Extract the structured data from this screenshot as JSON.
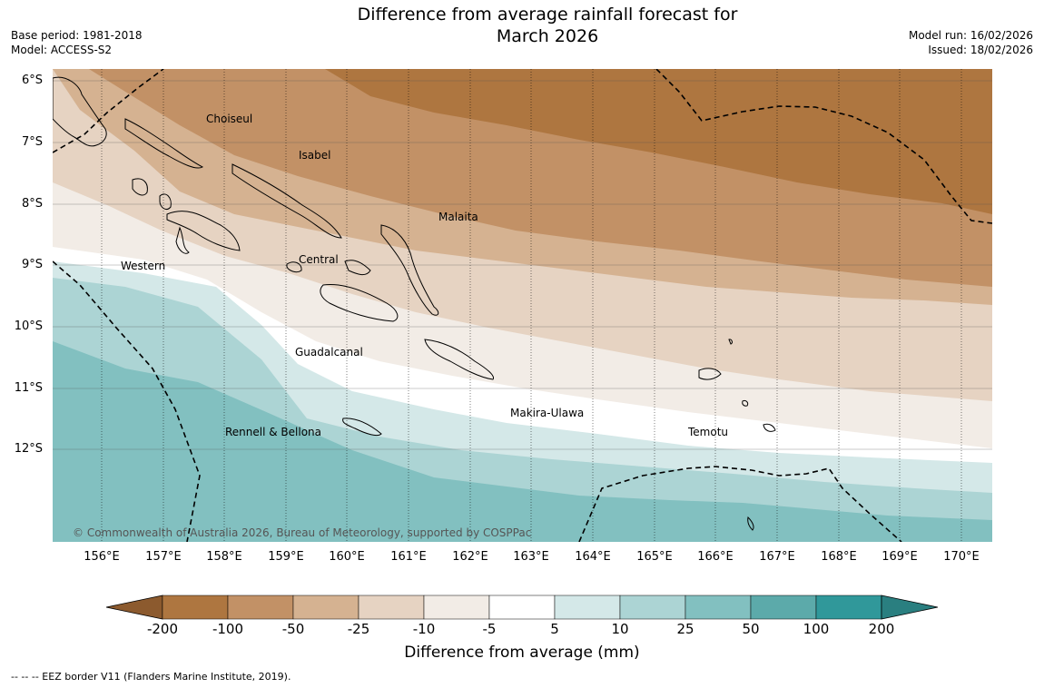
{
  "title_line1": "Difference from average rainfall forecast for",
  "title_line2": "March 2026",
  "meta_left": [
    "Base period: 1981-2018",
    "Model: ACCESS-S2"
  ],
  "meta_right": [
    "Model run: 16/02/2026",
    "Issued: 18/02/2026"
  ],
  "copyright": "© Commonwealth of Australia 2026, Bureau of Meteorology, supported by COSPPac",
  "latitude_labels": [
    "6°S",
    "7°S",
    "8°S",
    "9°S",
    "10°S",
    "11°S",
    "12°S"
  ],
  "longitude_labels": [
    "156°E",
    "157°E",
    "158°E",
    "159°E",
    "160°E",
    "161°E",
    "162°E",
    "163°E",
    "164°E",
    "165°E",
    "166°E",
    "167°E",
    "168°E",
    "169°E",
    "170°E"
  ],
  "province_labels": [
    "Choiseul",
    "Isabel",
    "Malaita",
    "Western",
    "Central",
    "Guadalcanal",
    "Makira-Ulawa",
    "Rennell & Bellona",
    "Temotu"
  ],
  "colorbar": {
    "labels": [
      "-200",
      "-100",
      "-50",
      "-25",
      "-10",
      "-5",
      "5",
      "10",
      "25",
      "50",
      "100",
      "200"
    ],
    "colors": [
      "#8c5a2e",
      "#ae7640",
      "#c29166",
      "#d5b291",
      "#e6d3c2",
      "#f2ece6",
      "#ffffff",
      "#d4e8e8",
      "#acd4d4",
      "#82c0c0",
      "#5caaaa",
      "#30989a",
      "#2a7f80"
    ],
    "title": "Difference from average (mm)"
  },
  "footnote": "--  --  -- EEZ border V11 (Flanders Marine Institute, 2019)."
}
